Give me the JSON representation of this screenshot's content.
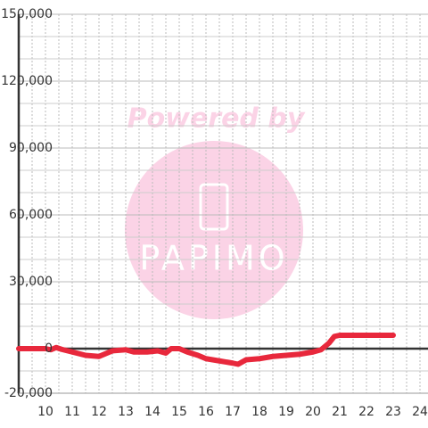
{
  "chart_data": {
    "type": "line",
    "watermark": [
      "Powered by",
      "PAPIMO"
    ],
    "x": [
      9.0,
      10.0,
      10.2,
      10.4,
      10.6,
      11.0,
      11.5,
      12.0,
      12.5,
      13.0,
      13.3,
      13.8,
      14.2,
      14.5,
      14.7,
      15.0,
      15.3,
      15.7,
      16.0,
      16.5,
      17.0,
      17.2,
      17.5,
      18.0,
      18.5,
      19.0,
      19.5,
      20.0,
      20.3,
      20.6,
      20.8,
      21.0,
      22.0,
      23.0
    ],
    "series": [
      {
        "color": "#e8283c",
        "values": [
          0,
          0,
          -500,
          500,
          -300,
          -1500,
          -3000,
          -3500,
          -1000,
          -500,
          -1500,
          -1500,
          -1000,
          -2000,
          0,
          0,
          -1500,
          -3000,
          -4500,
          -5500,
          -6500,
          -7000,
          -5000,
          -4500,
          -3500,
          -3000,
          -2500,
          -1500,
          -500,
          2500,
          5500,
          6000,
          6000,
          6000
        ]
      }
    ],
    "xlim": [
      9,
      24.3
    ],
    "xticks": [
      10,
      11,
      12,
      13,
      14,
      15,
      16,
      17,
      18,
      19,
      20,
      21,
      22,
      23,
      24
    ],
    "xgrid": [
      9.5,
      10,
      10.5,
      11,
      11.5,
      12,
      12.5,
      13,
      13.5,
      14,
      14.5,
      15,
      15.5,
      16,
      16.5,
      17,
      17.5,
      18,
      18.5,
      19,
      19.5,
      20,
      20.5,
      21,
      21.5,
      22,
      22.5,
      23,
      23.5,
      24
    ],
    "ylim": [
      -20000,
      150000
    ],
    "yticks": [
      {
        "value": -20000,
        "label": "-20,000"
      },
      0,
      {
        "value": 30000,
        "label": "30,000"
      },
      {
        "value": 60000,
        "label": "60,000"
      },
      {
        "value": 90000,
        "label": "90,000"
      },
      {
        "value": 120000,
        "label": "120,000"
      },
      {
        "value": 150000,
        "label": "150,000"
      }
    ],
    "ygrid": [
      -10000,
      10000,
      20000,
      40000,
      50000,
      70000,
      80000,
      100000,
      110000,
      130000,
      140000
    ],
    "grid": true
  }
}
